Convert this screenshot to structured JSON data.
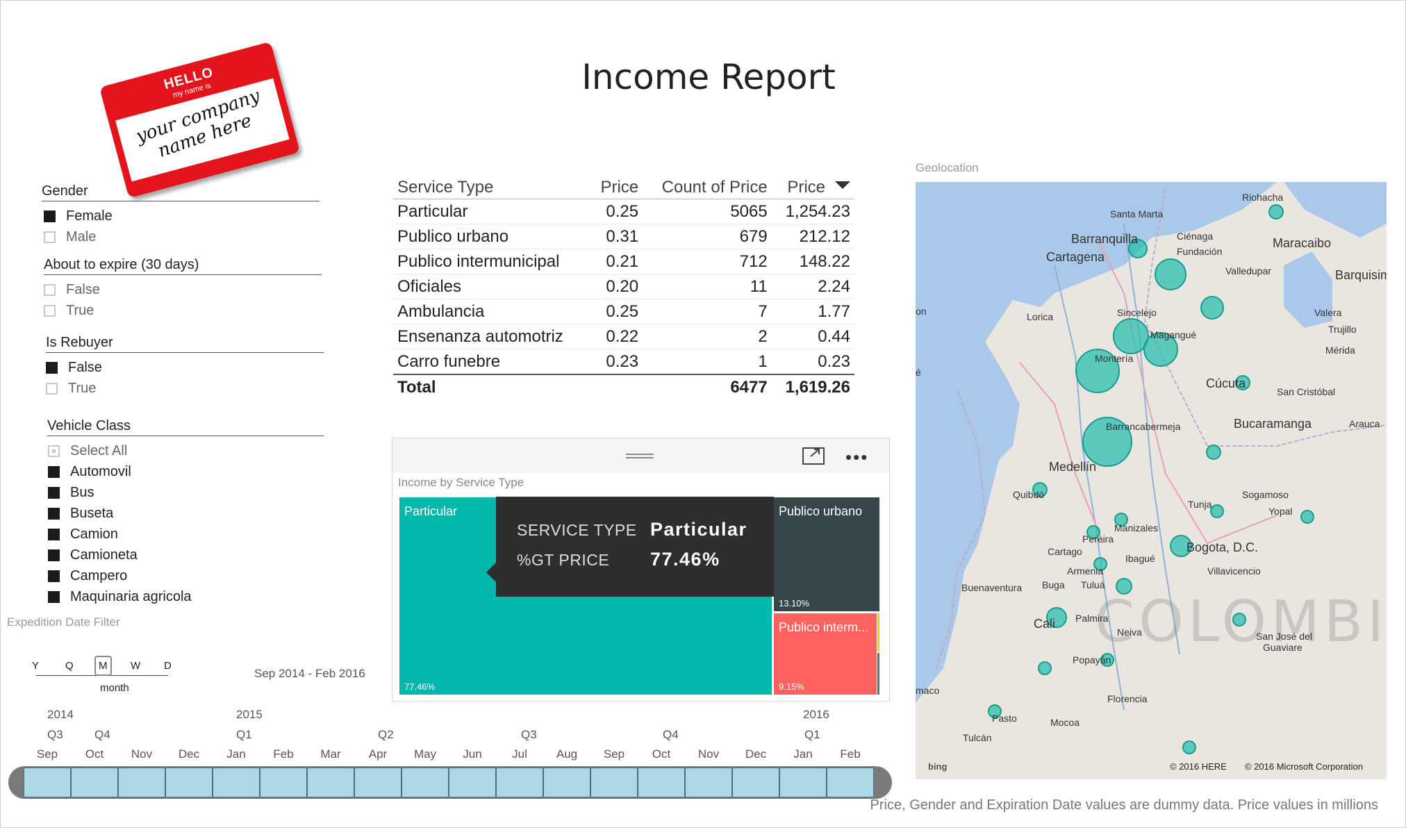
{
  "title": "Income Report",
  "logo": {
    "hello": "HELLO",
    "my_name_is": "my name is",
    "text_line1": "your company",
    "text_line2": "name here"
  },
  "slicers": {
    "gender": {
      "label": "Gender",
      "items": [
        {
          "label": "Female",
          "checked": true
        },
        {
          "label": "Male",
          "checked": false
        }
      ]
    },
    "expire": {
      "label": "About to expire (30 days)",
      "items": [
        {
          "label": "False",
          "checked": false
        },
        {
          "label": "True",
          "checked": false
        }
      ]
    },
    "rebuyer": {
      "label": "Is Rebuyer",
      "items": [
        {
          "label": "False",
          "checked": true
        },
        {
          "label": "True",
          "checked": false
        }
      ]
    },
    "vehicle": {
      "label": "Vehicle Class",
      "items": [
        {
          "label": "Select All",
          "checked": "partial"
        },
        {
          "label": "Automovil",
          "checked": true
        },
        {
          "label": "Bus",
          "checked": true
        },
        {
          "label": "Buseta",
          "checked": true
        },
        {
          "label": "Camion",
          "checked": true
        },
        {
          "label": "Camioneta",
          "checked": true
        },
        {
          "label": "Campero",
          "checked": true
        },
        {
          "label": "Maquinaria agricola",
          "checked": true
        }
      ]
    }
  },
  "table": {
    "headers": [
      "Service Type",
      "Price",
      "Count of Price",
      "Price"
    ],
    "rows": [
      [
        "Particular",
        "0.25",
        "5065",
        "1,254.23"
      ],
      [
        "Publico urbano",
        "0.31",
        "679",
        "212.12"
      ],
      [
        "Publico intermunicipal",
        "0.21",
        "712",
        "148.22"
      ],
      [
        "Oficiales",
        "0.20",
        "11",
        "2.24"
      ],
      [
        "Ambulancia",
        "0.25",
        "7",
        "1.77"
      ],
      [
        "Ensenanza automotriz",
        "0.22",
        "2",
        "0.44"
      ],
      [
        "Carro funebre",
        "0.23",
        "1",
        "0.23"
      ]
    ],
    "total": [
      "Total",
      "",
      "6477",
      "1,619.26"
    ]
  },
  "treemap": {
    "title": "Income by Service Type",
    "tiles": [
      {
        "name": "Particular",
        "pct": "77.46%",
        "color": "#01b8aa"
      },
      {
        "name": "Publico urbano",
        "pct": "13.10%",
        "color": "#374649"
      },
      {
        "name": "Publico interm...",
        "pct": "9.15%",
        "color": "#fd625e"
      }
    ],
    "tooltip": {
      "k1": "SERVICE TYPE",
      "v1": "Particular",
      "k2": "%GT PRICE",
      "v2": "77.46%"
    }
  },
  "map": {
    "title": "Geolocation",
    "watermark": "COLOMBIA",
    "labels": [
      "Riohacha",
      "Santa Marta",
      "Barranquilla",
      "Ciénaga",
      "Maracaibo",
      "Cartagena",
      "Fundación",
      "Valledupar",
      "Barquisim",
      "Lorica",
      "Sincelejo",
      "Valera",
      "Trujillo",
      "Magangué",
      "Mérida",
      "Montería",
      "Cúcuta",
      "San Cristóbal",
      "Barrancabermeja",
      "Bucaramanga",
      "Arauca",
      "Medellín",
      "Quibdó",
      "Sogamoso",
      "Tunja",
      "Yopal",
      "Manizales",
      "Pereira",
      "Cartago",
      "Ibagué",
      "Bogota, D.C.",
      "Armenia",
      "Villavicencio",
      "Buenaventura",
      "Buga",
      "Tuluá",
      "Cali",
      "Palmira",
      "Neiva",
      "San José del",
      "Guaviare",
      "Popayán",
      "Florencia",
      "Pasto",
      "Mocoa",
      "Tulcán",
      "on",
      "é",
      "maco"
    ],
    "copyright1": "© 2016 HERE",
    "copyright2": "© 2016 Microsoft Corporation",
    "bing": "bing"
  },
  "timeline": {
    "filter_label": "Expedition Date Filter",
    "granularity": [
      "Y",
      "Q",
      "M",
      "W",
      "D"
    ],
    "granularity_selected": "month",
    "range": "Sep 2014 - Feb 2016",
    "years": [
      "2014",
      "2015",
      "2016"
    ],
    "quarters": [
      "Q3",
      "Q4",
      "Q1",
      "Q2",
      "Q3",
      "Q4",
      "Q1"
    ],
    "months": [
      "Sep",
      "Oct",
      "Nov",
      "Dec",
      "Jan",
      "Feb",
      "Mar",
      "Apr",
      "May",
      "Jun",
      "Jul",
      "Aug",
      "Sep",
      "Oct",
      "Nov",
      "Dec",
      "Jan",
      "Feb"
    ]
  },
  "footer": "Price, Gender and Expiration Date values are dummy data. Price values in millions"
}
